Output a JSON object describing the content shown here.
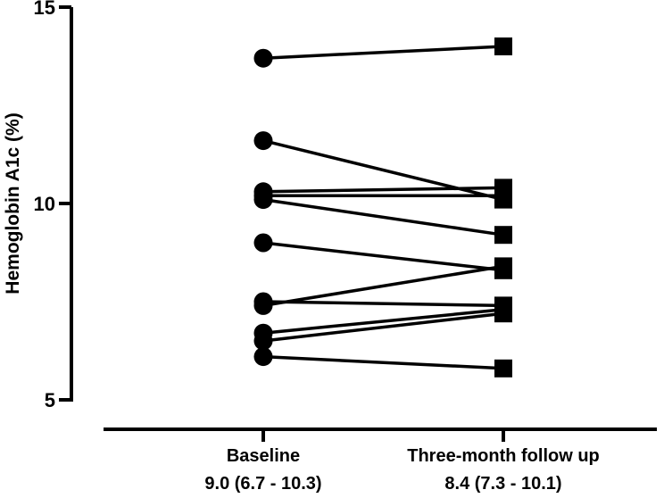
{
  "chart_data": {
    "type": "line",
    "title": "",
    "ylabel": "Hemoglobin A1c (%)",
    "xlabel": "",
    "ylim": [
      5,
      15
    ],
    "yticks": [
      "5",
      "10",
      "15"
    ],
    "grid": false,
    "categories": [
      {
        "label": "Baseline",
        "sublabel": "9.0 (6.7 - 10.3)",
        "marker": "circle"
      },
      {
        "label": "Three-month follow up",
        "sublabel": "8.4 (7.3 - 10.1)",
        "marker": "square"
      }
    ],
    "series": [
      {
        "values": [
          13.7,
          14.0
        ]
      },
      {
        "values": [
          11.6,
          10.1
        ]
      },
      {
        "values": [
          10.3,
          10.4
        ]
      },
      {
        "values": [
          10.2,
          10.2
        ]
      },
      {
        "values": [
          10.1,
          9.2
        ]
      },
      {
        "values": [
          9.0,
          8.3
        ]
      },
      {
        "values": [
          7.5,
          7.4
        ]
      },
      {
        "values": [
          7.4,
          8.4
        ]
      },
      {
        "values": [
          6.7,
          7.3
        ]
      },
      {
        "values": [
          6.5,
          7.2
        ]
      },
      {
        "values": [
          6.1,
          5.8
        ]
      }
    ]
  }
}
